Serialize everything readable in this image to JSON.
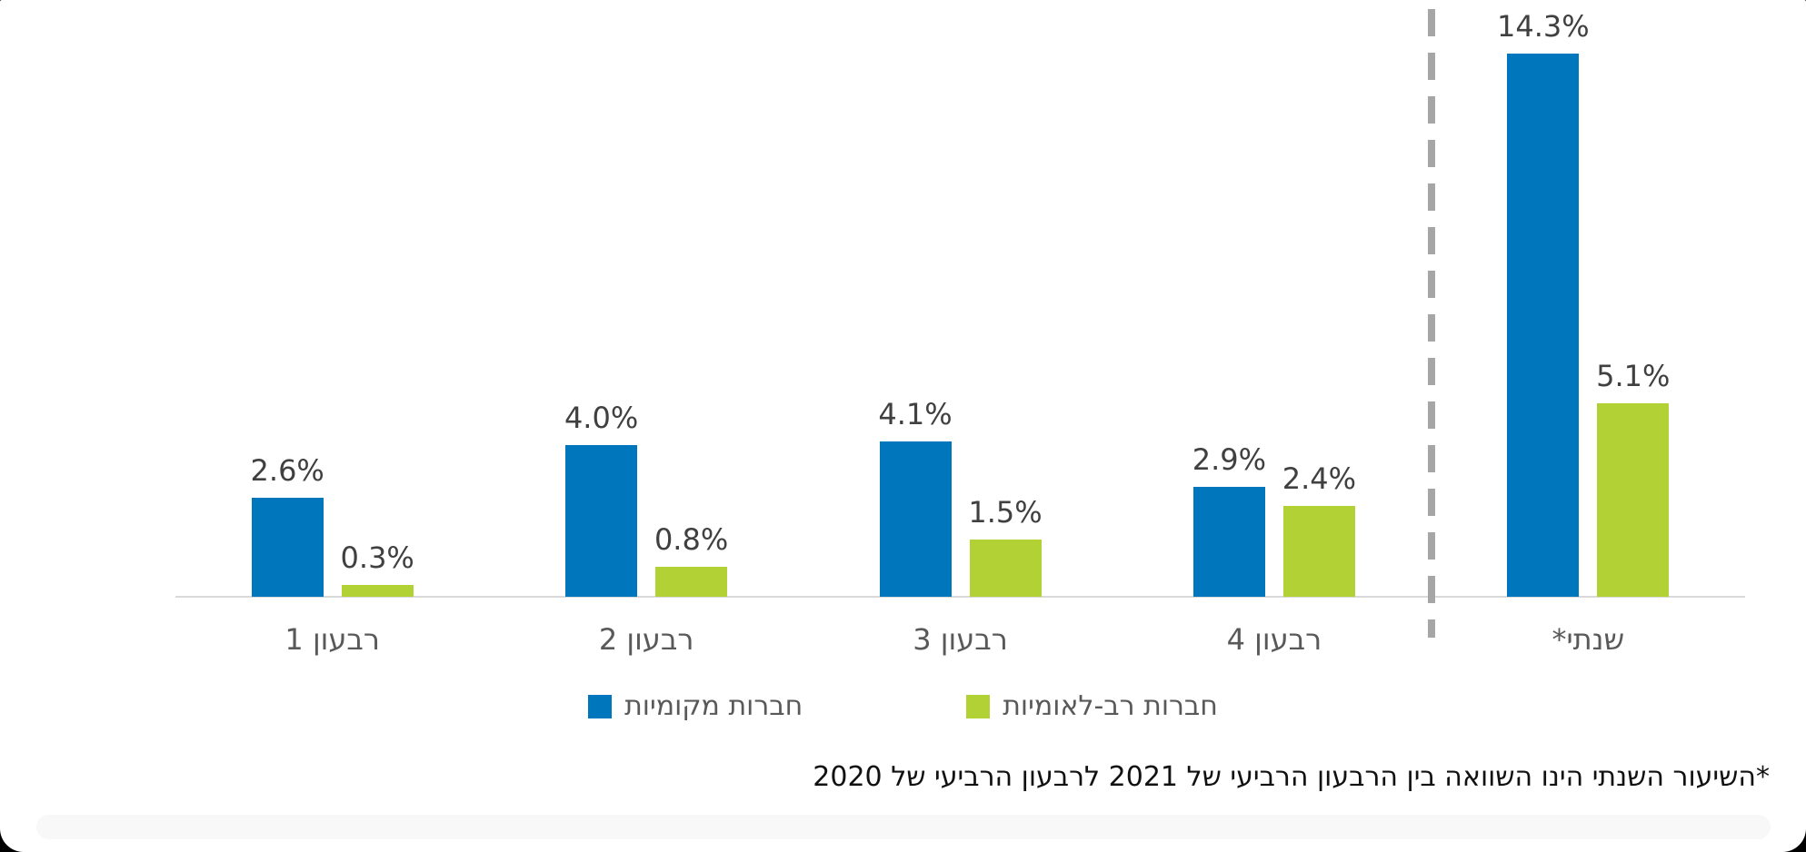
{
  "chart_data": {
    "type": "bar",
    "categories": [
      "רבעון 1",
      "רבעון 2",
      "רבעון 3",
      "רבעון 4",
      "שנתי*"
    ],
    "series": [
      {
        "name": "חברות מקומיות",
        "color": "#0077BC",
        "values": [
          2.6,
          4.0,
          4.1,
          2.9,
          14.3
        ]
      },
      {
        "name": "חברות רב-לאומיות",
        "color": "#B1D135",
        "values": [
          0.3,
          0.8,
          1.5,
          2.4,
          5.1
        ]
      }
    ],
    "data_labels": [
      [
        "2.6%",
        "4.0%",
        "4.1%",
        "2.9%",
        "14.3%"
      ],
      [
        "0.3%",
        "0.8%",
        "1.5%",
        "2.4%",
        "5.1%"
      ]
    ],
    "value_format": "percent_one_decimal",
    "ylim": [
      0,
      15
    ],
    "grid": false,
    "legend_position": "bottom",
    "separator_before_category": "שנתי*",
    "axis_color": "#D9D9D9",
    "separator_color": "#A6A6A6",
    "data_label_color": "#404040",
    "axis_label_color": "#595959"
  },
  "footnote": "*השיעור השנתי הינו השוואה בין הרבעון הרביעי של 2021 לרבעון הרביעי של 2020"
}
